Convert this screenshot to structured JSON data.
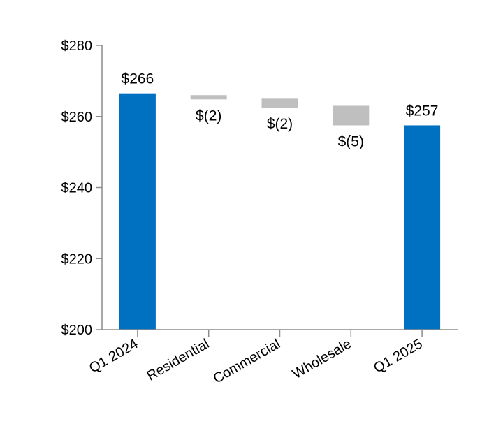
{
  "chart_data": {
    "type": "bar",
    "subtype": "waterfall",
    "title": "",
    "xlabel": "",
    "ylabel": "",
    "ylim": [
      200,
      280
    ],
    "yticks": [
      200,
      220,
      240,
      260,
      280
    ],
    "ytick_labels": [
      "$200",
      "$220",
      "$240",
      "$260",
      "$280"
    ],
    "grid": false,
    "legend": "none",
    "categories": [
      "Q1 2024",
      "Residential",
      "Commercial",
      "Wholesale",
      "Q1 2025"
    ],
    "bars": [
      {
        "kind": "total",
        "start": 200,
        "end": 266.5,
        "label": "$266"
      },
      {
        "kind": "delta",
        "start": 266.0,
        "end": 264.8,
        "label": "$(2)"
      },
      {
        "kind": "delta",
        "start": 265.0,
        "end": 262.5,
        "label": "$(2)"
      },
      {
        "kind": "delta",
        "start": 263.0,
        "end": 257.5,
        "label": "$(5)"
      },
      {
        "kind": "total",
        "start": 200,
        "end": 257.5,
        "label": "$257"
      }
    ],
    "colors": {
      "total": "#0070C0",
      "delta": "#BFBFBF",
      "axis": "#8C8C8C"
    }
  }
}
